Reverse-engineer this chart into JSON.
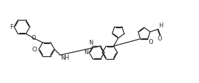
{
  "figsize": [
    2.9,
    1.21
  ],
  "dpi": 100,
  "lw": 0.9,
  "lc": "#222222",
  "fs": 5.5,
  "xlim": [
    0.0,
    9.5
  ],
  "ylim": [
    0.5,
    4.2
  ]
}
